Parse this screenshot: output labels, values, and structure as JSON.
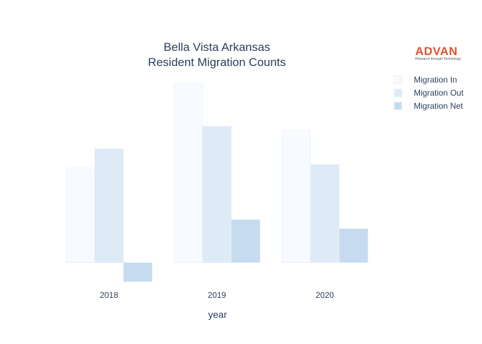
{
  "chart_data": {
    "type": "bar",
    "title_line1": "Bella Vista Arkansas",
    "title_line2": "Resident Migration Counts",
    "xlabel": "year",
    "ylabel": "",
    "categories": [
      "2018",
      "2019",
      "2020"
    ],
    "series": [
      {
        "name": "Migration In",
        "color": "#f7fbff",
        "values": [
          1980,
          3750,
          2760
        ]
      },
      {
        "name": "Migration Out",
        "color": "#deebf7",
        "values": [
          2380,
          2850,
          2050
        ]
      },
      {
        "name": "Migration Net",
        "color": "#c6dbef",
        "values": [
          -400,
          900,
          710
        ]
      }
    ],
    "ylim": [
      -550,
      4050
    ],
    "grid": false,
    "legend": "right"
  },
  "logo": {
    "word": "ADVAN",
    "tagline": "Research through Technology"
  }
}
